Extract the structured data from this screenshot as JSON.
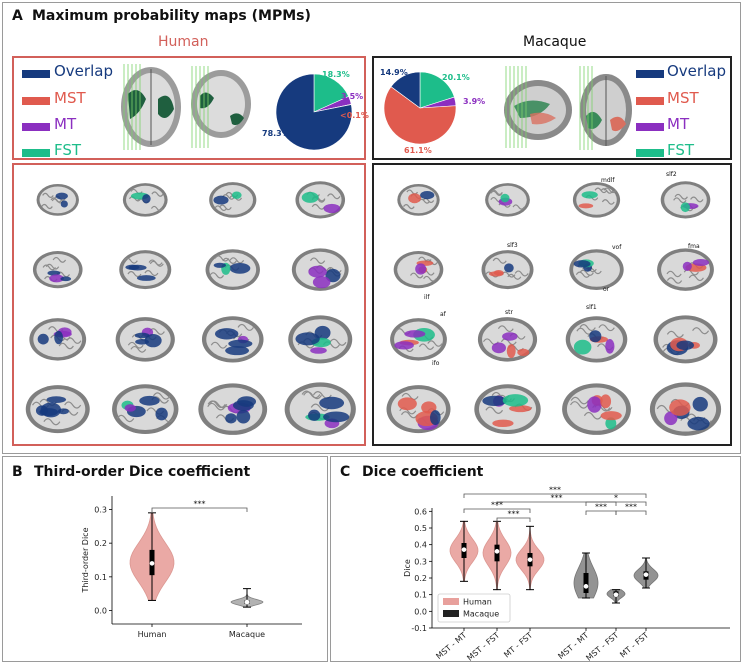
{
  "panelA": {
    "letter": "A",
    "title": "Maximum probability maps (MPMs)",
    "human": {
      "heading": "Human",
      "legend": [
        {
          "label": "Overlap",
          "color": "#163a7e"
        },
        {
          "label": "MST",
          "color": "#e05a4e"
        },
        {
          "label": "MT",
          "color": "#8b2fc0"
        },
        {
          "label": "FST",
          "color": "#1dbd8a"
        }
      ],
      "pie": [
        {
          "label": "78.3%",
          "value": 78.3,
          "color": "#163a7e"
        },
        {
          "label": "18.3%",
          "value": 18.3,
          "color": "#1dbd8a"
        },
        {
          "label": "3.5%",
          "value": 3.5,
          "color": "#8b2fc0"
        },
        {
          "label": "<0.1%",
          "value": 0.1,
          "color": "#e05a4e"
        }
      ]
    },
    "macaque": {
      "heading": "Macaque",
      "legend": [
        {
          "label": "Overlap",
          "color": "#163a7e"
        },
        {
          "label": "MST",
          "color": "#e05a4e"
        },
        {
          "label": "MT",
          "color": "#8b2fc0"
        },
        {
          "label": "FST",
          "color": "#1dbd8a"
        }
      ],
      "pie": [
        {
          "label": "14.9%",
          "value": 14.9,
          "color": "#163a7e"
        },
        {
          "label": "61.1%",
          "value": 61.1,
          "color": "#e05a4e"
        },
        {
          "label": "3.9%",
          "value": 3.9,
          "color": "#8b2fc0"
        },
        {
          "label": "20.1%",
          "value": 20.1,
          "color": "#1dbd8a"
        }
      ],
      "tract_labels": [
        "mdlf",
        "slf2",
        "slf3",
        "vof",
        "fma",
        "ilf",
        "or",
        "af",
        "str",
        "slf1",
        "ifo"
      ]
    }
  },
  "panelB": {
    "letter": "B",
    "title": "Third-order Dice coefficient",
    "significance": "***"
  },
  "panelC": {
    "letter": "C",
    "title": "Dice coefficient",
    "significance": [
      "***",
      "***",
      "***",
      "***",
      "*",
      "***",
      "***"
    ]
  },
  "chart_data": [
    {
      "type": "violin",
      "title": "Third-order Dice coefficient",
      "xlabel": "",
      "ylabel": "Third-order Dice",
      "categories": [
        "Human",
        "Macaque"
      ],
      "yticks": [
        0.0,
        0.1,
        0.2,
        0.3
      ],
      "ylim": [
        -0.04,
        0.34
      ],
      "series": [
        {
          "category": "Human",
          "color": "#e8a09c",
          "min": 0.03,
          "q1": 0.105,
          "median": 0.14,
          "q3": 0.18,
          "max": 0.29
        },
        {
          "category": "Macaque",
          "color": "#aaaaaa",
          "min": 0.01,
          "q1": 0.02,
          "median": 0.025,
          "q3": 0.03,
          "max": 0.065
        }
      ],
      "annotations": [
        {
          "between": [
            "Human",
            "Macaque"
          ],
          "text": "***"
        }
      ]
    },
    {
      "type": "violin",
      "title": "Dice coefficient",
      "xlabel": "",
      "ylabel": "Dice",
      "categories": [
        "MST - MT",
        "MST - FST",
        "MT - FST",
        "MST - MT",
        "MST - FST",
        "MT - FST"
      ],
      "yticks": [
        -0.1,
        0.0,
        0.1,
        0.2,
        0.3,
        0.4,
        0.5,
        0.6
      ],
      "ylim": [
        -0.1,
        0.62
      ],
      "legend": [
        {
          "label": "Human",
          "color": "#e8a09c"
        },
        {
          "label": "Macaque",
          "color": "#222222"
        }
      ],
      "series": [
        {
          "group": "Human",
          "category": "MST - MT",
          "color": "#e8a09c",
          "min": 0.18,
          "q1": 0.32,
          "median": 0.37,
          "q3": 0.41,
          "max": 0.54
        },
        {
          "group": "Human",
          "category": "MST - FST",
          "color": "#e8a09c",
          "min": 0.13,
          "q1": 0.3,
          "median": 0.36,
          "q3": 0.4,
          "max": 0.54
        },
        {
          "group": "Human",
          "category": "MT - FST",
          "color": "#e8a09c",
          "min": 0.13,
          "q1": 0.27,
          "median": 0.31,
          "q3": 0.35,
          "max": 0.51
        },
        {
          "group": "Macaque",
          "category": "MST - MT",
          "color": "#888888",
          "min": 0.08,
          "q1": 0.11,
          "median": 0.15,
          "q3": 0.23,
          "max": 0.35
        },
        {
          "group": "Macaque",
          "category": "MST - FST",
          "color": "#888888",
          "min": 0.05,
          "q1": 0.09,
          "median": 0.1,
          "q3": 0.12,
          "max": 0.13
        },
        {
          "group": "Macaque",
          "category": "MT - FST",
          "color": "#888888",
          "min": 0.14,
          "q1": 0.19,
          "median": 0.22,
          "q3": 0.24,
          "max": 0.32
        }
      ]
    }
  ]
}
